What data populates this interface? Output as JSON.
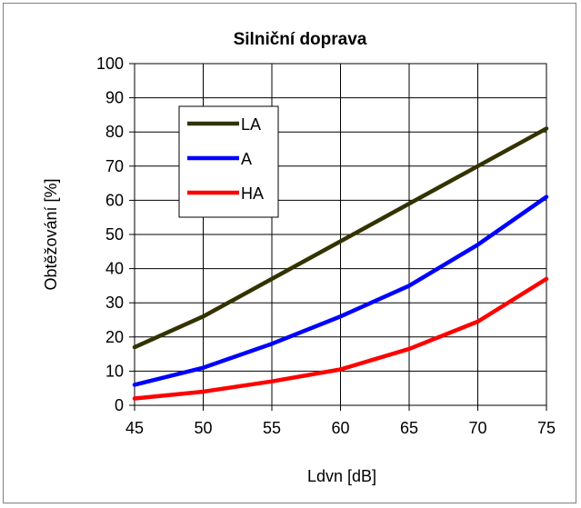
{
  "chart_data": {
    "type": "line",
    "title": "Silniční doprava",
    "xlabel": "Ldvn [dB]",
    "ylabel": "Obtěžování [%]",
    "xlim": [
      45,
      75
    ],
    "ylim": [
      0,
      100
    ],
    "xticks": [
      45,
      50,
      55,
      60,
      65,
      70,
      75
    ],
    "yticks": [
      0,
      10,
      20,
      30,
      40,
      50,
      60,
      70,
      80,
      90,
      100
    ],
    "grid": true,
    "legend": "top-left",
    "x": [
      45,
      50,
      55,
      60,
      65,
      70,
      75
    ],
    "series": [
      {
        "name": "LA",
        "color": "#333300",
        "values": [
          17,
          26,
          37,
          48,
          59,
          70,
          81
        ]
      },
      {
        "name": "A",
        "color": "#0000ff",
        "values": [
          6,
          11,
          18,
          26,
          35,
          47,
          61
        ]
      },
      {
        "name": "HA",
        "color": "#ff0000",
        "values": [
          2,
          4,
          7,
          10.5,
          16.5,
          24.5,
          37
        ]
      }
    ]
  }
}
